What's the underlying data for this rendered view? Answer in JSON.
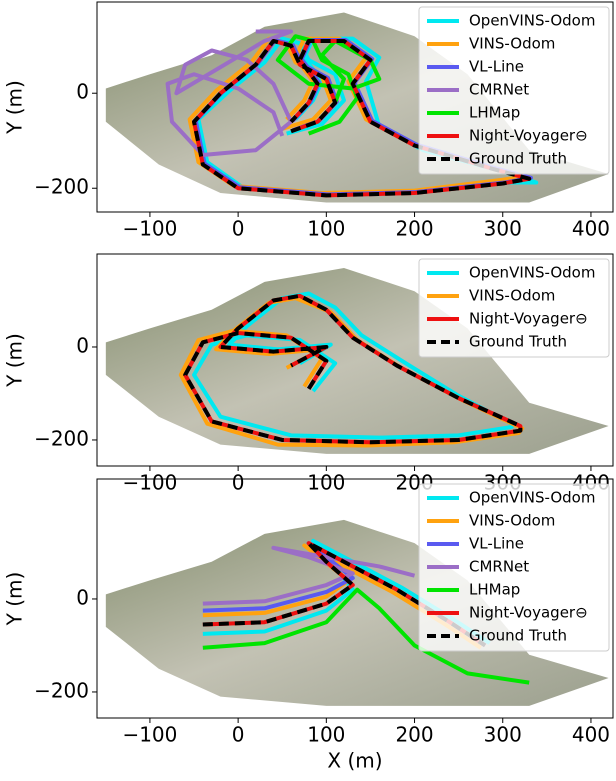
{
  "chart_data": [
    {
      "type": "line",
      "ylabel": "Y (m)",
      "xlim": [
        -160,
        425
      ],
      "ylim": [
        -250,
        192
      ],
      "xticks": [
        {
          "value": -100,
          "label": "−100"
        },
        0,
        100,
        200,
        300,
        400
      ],
      "yticks": [
        {
          "value": -200,
          "label": "−200"
        },
        0
      ],
      "grid": false,
      "legend": "upper right",
      "series": [
        {
          "name": "OpenVINS-Odom",
          "color": "#00e8f0",
          "linestyle": "solid",
          "x": [
            55,
            95,
            120,
            110,
            80,
            70,
            50,
            30,
            -10,
            -45,
            -35,
            5,
            105,
            210,
            310,
            338,
            300,
            210,
            160,
            145,
            160,
            130,
            85,
            75,
            95,
            85,
            65
          ],
          "values": [
            -85,
            -65,
            -15,
            40,
            70,
            105,
            115,
            65,
            5,
            -55,
            -145,
            -198,
            -212,
            -205,
            -188,
            -188,
            -165,
            -120,
            -70,
            25,
            75,
            115,
            115,
            75,
            25,
            -15,
            -55
          ]
        },
        {
          "name": "VINS-Odom",
          "color": "#ffa20f",
          "linestyle": "solid",
          "x": [
            50,
            85,
            105,
            95,
            65,
            55,
            35,
            15,
            -25,
            -55,
            -45,
            -5,
            95,
            200,
            300,
            325,
            285,
            195,
            145,
            125,
            145,
            115,
            75,
            65,
            85,
            75,
            55
          ],
          "values": [
            -75,
            -55,
            -15,
            35,
            65,
            105,
            115,
            65,
            5,
            -55,
            -145,
            -195,
            -210,
            -205,
            -182,
            -175,
            -155,
            -105,
            -55,
            25,
            75,
            115,
            115,
            75,
            25,
            -15,
            -55
          ]
        },
        {
          "name": "VL-Line",
          "color": "#5a5af0",
          "linestyle": "solid",
          "x": [
            62,
            92,
            112,
            102,
            72,
            62,
            42,
            22,
            -18,
            -48,
            -38,
            2,
            102,
            202,
            302,
            332,
            292,
            202,
            152,
            132,
            152,
            122,
            82,
            72,
            92,
            82,
            62
          ],
          "values": [
            -78,
            -58,
            -18,
            32,
            62,
            102,
            112,
            62,
            2,
            -58,
            -148,
            -198,
            -213,
            -208,
            -188,
            -178,
            -158,
            -108,
            -58,
            22,
            72,
            112,
            112,
            72,
            22,
            -18,
            -58
          ]
        },
        {
          "name": "CMRNet",
          "color": "#9b6ec6",
          "linestyle": "solid",
          "x": [
            50,
            40,
            0,
            -50,
            -80,
            -75,
            -40,
            20,
            60,
            40,
            10,
            -30,
            -60,
            -70,
            30,
            60,
            40,
            20
          ],
          "values": [
            -90,
            -40,
            10,
            40,
            20,
            -60,
            -130,
            -120,
            -60,
            20,
            70,
            90,
            60,
            0,
            110,
            130,
            130,
            130
          ]
        },
        {
          "name": "LHMap",
          "color": "#00e400",
          "linestyle": "solid",
          "x": [
            80,
            115,
            135,
            125,
            95,
            85,
            65,
            45,
            80,
            130,
            160,
            150,
            110,
            95,
            120,
            110,
            90
          ],
          "values": [
            -85,
            -60,
            -10,
            40,
            70,
            110,
            120,
            70,
            20,
            10,
            30,
            70,
            110,
            80,
            30,
            -20,
            -60
          ]
        },
        {
          "name": "Night-Voyager⊖",
          "color": "#ee1010",
          "linestyle": "solid",
          "x": [
            60,
            90,
            110,
            100,
            70,
            60,
            40,
            20,
            -20,
            -50,
            -40,
            0,
            100,
            200,
            300,
            330,
            290,
            200,
            150,
            130,
            150,
            120,
            80,
            70,
            90,
            80,
            60
          ],
          "values": [
            -80,
            -60,
            -20,
            30,
            60,
            100,
            110,
            60,
            0,
            -60,
            -150,
            -200,
            -215,
            -210,
            -190,
            -180,
            -160,
            -110,
            -60,
            20,
            70,
            110,
            110,
            70,
            20,
            -20,
            -60
          ]
        },
        {
          "name": "Ground Truth",
          "color": "#000000",
          "linestyle": "dashed",
          "x": [
            60,
            90,
            110,
            100,
            70,
            60,
            40,
            20,
            -20,
            -50,
            -40,
            0,
            100,
            200,
            300,
            330,
            290,
            200,
            150,
            130,
            150,
            120,
            80,
            70,
            90,
            80,
            60
          ],
          "values": [
            -80,
            -60,
            -20,
            30,
            60,
            100,
            110,
            60,
            0,
            -60,
            -150,
            -200,
            -215,
            -210,
            -190,
            -180,
            -160,
            -110,
            -60,
            20,
            70,
            110,
            110,
            70,
            20,
            -20,
            -60
          ]
        }
      ]
    },
    {
      "type": "line",
      "ylabel": "Y (m)",
      "xlim": [
        -160,
        425
      ],
      "ylim": [
        -256,
        200
      ],
      "xticks": [
        {
          "value": -100,
          "label": "−100"
        },
        0,
        100,
        200,
        300,
        400
      ],
      "yticks": [
        {
          "value": -200,
          "label": "−200"
        },
        0
      ],
      "grid": false,
      "legend": "upper right",
      "series": [
        {
          "name": "OpenVINS-Odom",
          "color": "#00e8f0",
          "linestyle": "solid",
          "x": [
            85,
            110,
            70,
            10,
            -30,
            -50,
            -20,
            60,
            160,
            250,
            310,
            310,
            250,
            190,
            140,
            110,
            80,
            50,
            10,
            -10,
            45,
            105,
            70
          ],
          "values": [
            -95,
            -35,
            15,
            25,
            5,
            -60,
            -150,
            -190,
            -195,
            -190,
            -172,
            -165,
            -105,
            -35,
            25,
            85,
            115,
            105,
            45,
            5,
            -5,
            5,
            -35
          ]
        },
        {
          "name": "VINS-Odom",
          "color": "#ffa20f",
          "linestyle": "solid",
          "x": [
            75,
            95,
            55,
            -5,
            -45,
            -65,
            -35,
            45,
            145,
            245,
            318,
            322,
            255,
            185,
            135,
            105,
            65,
            35,
            -5,
            -25,
            35,
            95,
            55
          ],
          "values": [
            -85,
            -25,
            25,
            35,
            15,
            -60,
            -165,
            -210,
            -212,
            -205,
            -185,
            -175,
            -115,
            -45,
            15,
            75,
            105,
            95,
            35,
            -5,
            -15,
            -5,
            -45
          ]
        },
        {
          "name": "Night-Voyager⊖",
          "color": "#ee1010",
          "linestyle": "solid",
          "x": [
            80,
            100,
            60,
            0,
            -40,
            -60,
            -30,
            50,
            150,
            250,
            320,
            320,
            250,
            180,
            130,
            100,
            70,
            40,
            0,
            -20,
            40,
            100,
            60
          ],
          "values": [
            -90,
            -30,
            20,
            30,
            10,
            -60,
            -160,
            -200,
            -205,
            -200,
            -180,
            -170,
            -110,
            -40,
            20,
            80,
            110,
            100,
            40,
            0,
            -10,
            0,
            -40
          ]
        },
        {
          "name": "Ground Truth",
          "color": "#000000",
          "linestyle": "dashed",
          "x": [
            80,
            100,
            60,
            0,
            -40,
            -60,
            -30,
            50,
            150,
            250,
            320,
            320,
            250,
            180,
            130,
            100,
            70,
            40,
            0,
            -20,
            40,
            100,
            60
          ],
          "values": [
            -90,
            -30,
            20,
            30,
            10,
            -60,
            -160,
            -200,
            -205,
            -200,
            -180,
            -170,
            -110,
            -40,
            20,
            80,
            110,
            100,
            40,
            0,
            -10,
            0,
            -40
          ]
        }
      ]
    },
    {
      "type": "line",
      "xlabel": "X (m)",
      "ylabel": "Y (m)",
      "xlim": [
        -160,
        425
      ],
      "ylim": [
        -256,
        258
      ],
      "xticks": [
        {
          "value": -100,
          "label": "−100"
        },
        0,
        100,
        200,
        300,
        400
      ],
      "yticks": [
        {
          "value": -200,
          "label": "−200"
        },
        0
      ],
      "grid": false,
      "legend": "upper right",
      "series": [
        {
          "name": "OpenVINS-Odom",
          "color": "#00e8f0",
          "linestyle": "solid",
          "x": [
            -40,
            30,
            100,
            130,
            105,
            85,
            125,
            185,
            245,
            285
          ],
          "values": [
            -75,
            -70,
            -25,
            20,
            80,
            125,
            85,
            25,
            -45,
            -95
          ]
        },
        {
          "name": "VINS-Odom",
          "color": "#ffa20f",
          "linestyle": "solid",
          "x": [
            -40,
            30,
            100,
            125,
            95,
            75,
            115,
            175,
            235,
            275
          ],
          "values": [
            -35,
            -30,
            5,
            40,
            85,
            115,
            75,
            15,
            -55,
            -105
          ]
        },
        {
          "name": "VL-Line",
          "color": "#5a5af0",
          "linestyle": "solid",
          "x": [
            -40,
            30,
            100,
            130,
            100,
            80,
            120,
            180,
            240,
            280
          ],
          "values": [
            -25,
            -20,
            15,
            45,
            90,
            120,
            80,
            20,
            -50,
            -100
          ]
        },
        {
          "name": "CMRNet",
          "color": "#9b6ec6",
          "linestyle": "solid",
          "x": [
            -40,
            30,
            100,
            130,
            80,
            40,
            160,
            200
          ],
          "values": [
            -10,
            -5,
            30,
            55,
            90,
            110,
            70,
            50
          ]
        },
        {
          "name": "LHMap",
          "color": "#00e400",
          "linestyle": "solid",
          "x": [
            -40,
            30,
            100,
            135,
            160,
            200,
            260,
            330
          ],
          "values": [
            -105,
            -95,
            -50,
            20,
            -20,
            -100,
            -160,
            -180
          ]
        },
        {
          "name": "Night-Voyager⊖",
          "color": "#ee1010",
          "linestyle": "solid",
          "x": [
            -40,
            30,
            100,
            130,
            100,
            80,
            120,
            180,
            240,
            280
          ],
          "values": [
            -55,
            -50,
            -10,
            30,
            80,
            120,
            80,
            20,
            -50,
            -100
          ]
        },
        {
          "name": "Ground Truth",
          "color": "#000000",
          "linestyle": "dashed",
          "x": [
            -40,
            30,
            100,
            130,
            100,
            80,
            120,
            180,
            240,
            280
          ],
          "values": [
            -55,
            -50,
            -10,
            30,
            80,
            120,
            80,
            20,
            -50,
            -100
          ]
        }
      ]
    }
  ]
}
